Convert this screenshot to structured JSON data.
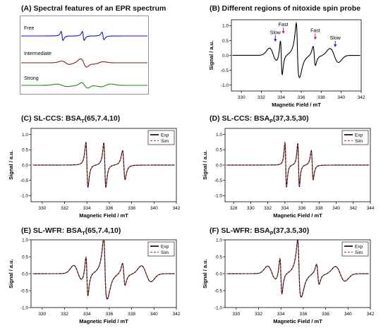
{
  "figure": {
    "panel_a": {
      "title": "(A) Spectral features of an EPR spectrum"
    },
    "panel_b": {
      "title": "(B) Different regions of nitoxide spin probe"
    },
    "panel_c": {
      "title_prefix": "(C) SL-CCS: BSA",
      "title_sub": "T",
      "title_suffix": "(65,7.4,10)"
    },
    "panel_d": {
      "title_prefix": "(D) SL-CCS: BSA",
      "title_sub": "P",
      "title_suffix": "(37,3.5,30)"
    },
    "panel_e": {
      "title_prefix": "(E) SL-WFR: BSA",
      "title_sub": "T",
      "title_suffix": "(65,7.4,10)"
    },
    "panel_f": {
      "title_prefix": "(F) SL-WFR: BSA",
      "title_sub": "P",
      "title_suffix": "(37,3.5,30)"
    }
  },
  "colors": {
    "free": "#1010e0",
    "intermediate": "#8b1a1a",
    "strong": "#2e7d1a",
    "exp": "#000000",
    "sim": "#d04040",
    "arrow_blue": "#2a2ad0",
    "arrow_pink": "#d0208a"
  },
  "chart_data": [
    {
      "id": "A",
      "type": "line",
      "title": "(A) Spectral features of an EPR spectrum",
      "xlabel": "",
      "ylabel": "",
      "series": [
        {
          "name": "Free",
          "regime": "free"
        },
        {
          "name": "Intermediate",
          "regime": "intermediate"
        },
        {
          "name": "Strong",
          "regime": "strong"
        }
      ]
    },
    {
      "id": "B",
      "type": "line",
      "title": "(B) Different regions of nitoxide spin probe",
      "xlabel": "Magnetic Field / mT",
      "ylabel": "Signal / a.u.",
      "xlim": [
        329,
        342
      ],
      "ylim": [
        -1.2,
        1.2
      ],
      "xticks": [
        330,
        332,
        334,
        336,
        338,
        340,
        342
      ],
      "yticks": [
        -1.0,
        -0.5,
        0.0,
        0.5,
        1.0
      ],
      "regime": "mixed",
      "annotations": [
        {
          "text": "Slow",
          "x": 333.4,
          "y": 0.48,
          "color": "blue"
        },
        {
          "text": "Fast",
          "x": 334.2,
          "y": 0.75,
          "color": "pink"
        },
        {
          "text": "Fast",
          "x": 337.4,
          "y": 0.55,
          "color": "pink"
        },
        {
          "text": "Slow",
          "x": 339.4,
          "y": 0.3,
          "color": "blue"
        }
      ]
    },
    {
      "id": "C",
      "type": "line",
      "title": "(C) SL-CCS: BSAT(65,7.4,10)",
      "xlabel": "Magnetic Field / mT",
      "ylabel": "Signal / a.u.",
      "xlim": [
        329,
        342
      ],
      "ylim": [
        -1.2,
        1.2
      ],
      "xticks": [
        330,
        332,
        334,
        336,
        338,
        340,
        342
      ],
      "yticks": [
        -1.0,
        -0.5,
        0.0,
        0.5,
        1.0
      ],
      "regime": "free",
      "centers": [
        334.0,
        335.6,
        337.3
      ],
      "legend": [
        "Exp",
        "Sim"
      ],
      "legend_position": "top-right"
    },
    {
      "id": "D",
      "type": "line",
      "title": "(D) SL-CCS: BSAP(37,3.5,30)",
      "xlabel": "Magnetic Field / mT",
      "ylabel": "Signal / a.u.",
      "xlim": [
        327,
        344
      ],
      "ylim": [
        -1.2,
        1.2
      ],
      "xticks": [
        328,
        330,
        332,
        334,
        336,
        338,
        340,
        342,
        344
      ],
      "yticks": [
        -1.0,
        -0.5,
        0.0,
        0.5,
        1.0
      ],
      "regime": "free",
      "centers": [
        334.1,
        335.6,
        337.2
      ],
      "legend": [
        "Exp",
        "Sim"
      ],
      "legend_position": "top-right"
    },
    {
      "id": "E",
      "type": "line",
      "title": "(E) SL-WFR: BSAT(65,7.4,10)",
      "xlabel": "Magnetic Field / mT",
      "ylabel": "Signal / a.u.",
      "xlim": [
        329,
        342
      ],
      "ylim": [
        -1.0,
        1.0
      ],
      "xticks": [
        330,
        332,
        334,
        336,
        338,
        340,
        342
      ],
      "yticks": [
        -1.0,
        -0.5,
        0.0,
        0.5,
        1.0
      ],
      "regime": "mixed",
      "legend": [
        "Exp",
        "Sim"
      ],
      "legend_position": "top-right"
    },
    {
      "id": "F",
      "type": "line",
      "title": "(F) SL-WFR: BSAP(37,3.5,30)",
      "xlabel": "Magnetic Field / mT",
      "ylabel": "Signal / a.u.",
      "xlim": [
        329,
        342
      ],
      "ylim": [
        -1.0,
        1.0
      ],
      "xticks": [
        330,
        332,
        334,
        336,
        338,
        340,
        342
      ],
      "yticks": [
        -1.0,
        -0.5,
        0.0,
        0.5,
        1.0
      ],
      "regime": "mixed",
      "legend": [
        "Exp",
        "Sim"
      ],
      "legend_position": "top-right"
    }
  ]
}
